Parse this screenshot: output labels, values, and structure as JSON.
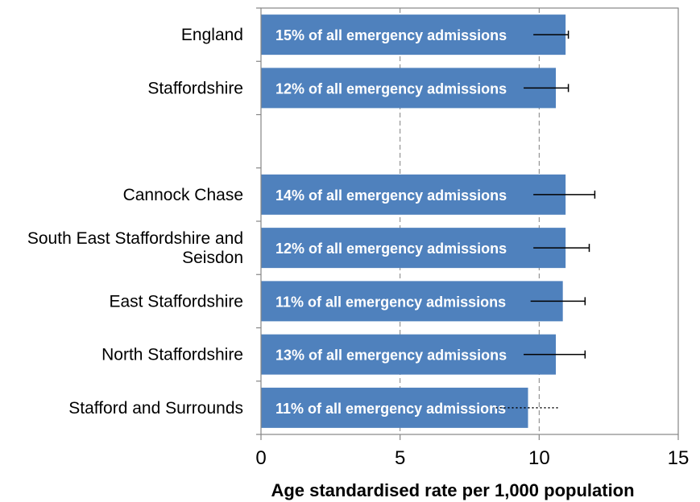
{
  "chart_data": {
    "type": "bar",
    "orientation": "horizontal",
    "xlabel": "Age standardised rate per 1,000 population",
    "xlim": [
      0,
      15
    ],
    "xticks": [
      "0",
      "5",
      "10",
      "15"
    ],
    "grid": "vertical dashed at 5 and 10",
    "bar_color": "#4F81BD",
    "rows": [
      {
        "category": "England",
        "value": 10.95,
        "error_upper": 11.05,
        "bar_label": "15% of all emergency admissions",
        "error_style": "solid"
      },
      {
        "category": "Staffordshire",
        "value": 10.6,
        "error_upper": 11.05,
        "bar_label": "12% of all emergency admissions",
        "error_style": "solid"
      },
      {
        "category": "",
        "value": null,
        "error_upper": null,
        "bar_label": "",
        "error_style": "none"
      },
      {
        "category": "Cannock Chase",
        "value": 10.95,
        "error_upper": 12.0,
        "bar_label": "14% of all emergency admissions",
        "error_style": "solid"
      },
      {
        "category": "South East Staffordshire and Seisdon",
        "value": 10.95,
        "error_upper": 11.8,
        "bar_label": "12% of all emergency admissions",
        "error_style": "solid"
      },
      {
        "category": "East Staffordshire",
        "value": 10.85,
        "error_upper": 11.65,
        "bar_label": "11% of all emergency admissions",
        "error_style": "solid"
      },
      {
        "category": "North Staffordshire",
        "value": 10.6,
        "error_upper": 11.65,
        "bar_label": "13% of all emergency admissions",
        "error_style": "solid"
      },
      {
        "category": "Stafford and Surrounds",
        "value": 9.6,
        "error_upper": 10.7,
        "bar_label": "11% of all emergency admissions",
        "error_style": "dotted"
      }
    ]
  }
}
